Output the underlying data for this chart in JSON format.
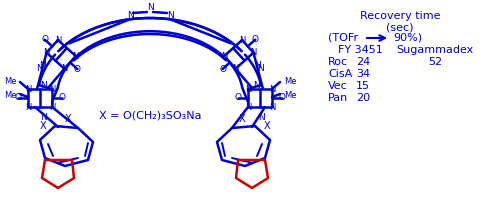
{
  "blue": "#0000CC",
  "red": "#CC0000",
  "bg": "#FFFFFF",
  "table_header1": "Recovery time",
  "table_header2": "(sec)",
  "table_col1": "FY 3451",
  "table_col2": "Sugammadex",
  "rows": [
    [
      "Roc",
      "24",
      "52"
    ],
    [
      "CisA",
      "34",
      ""
    ],
    [
      "Vec",
      "15",
      ""
    ],
    [
      "Pan",
      "20",
      ""
    ]
  ],
  "substituent": "X = O(CH₂)₃SO₃Na"
}
